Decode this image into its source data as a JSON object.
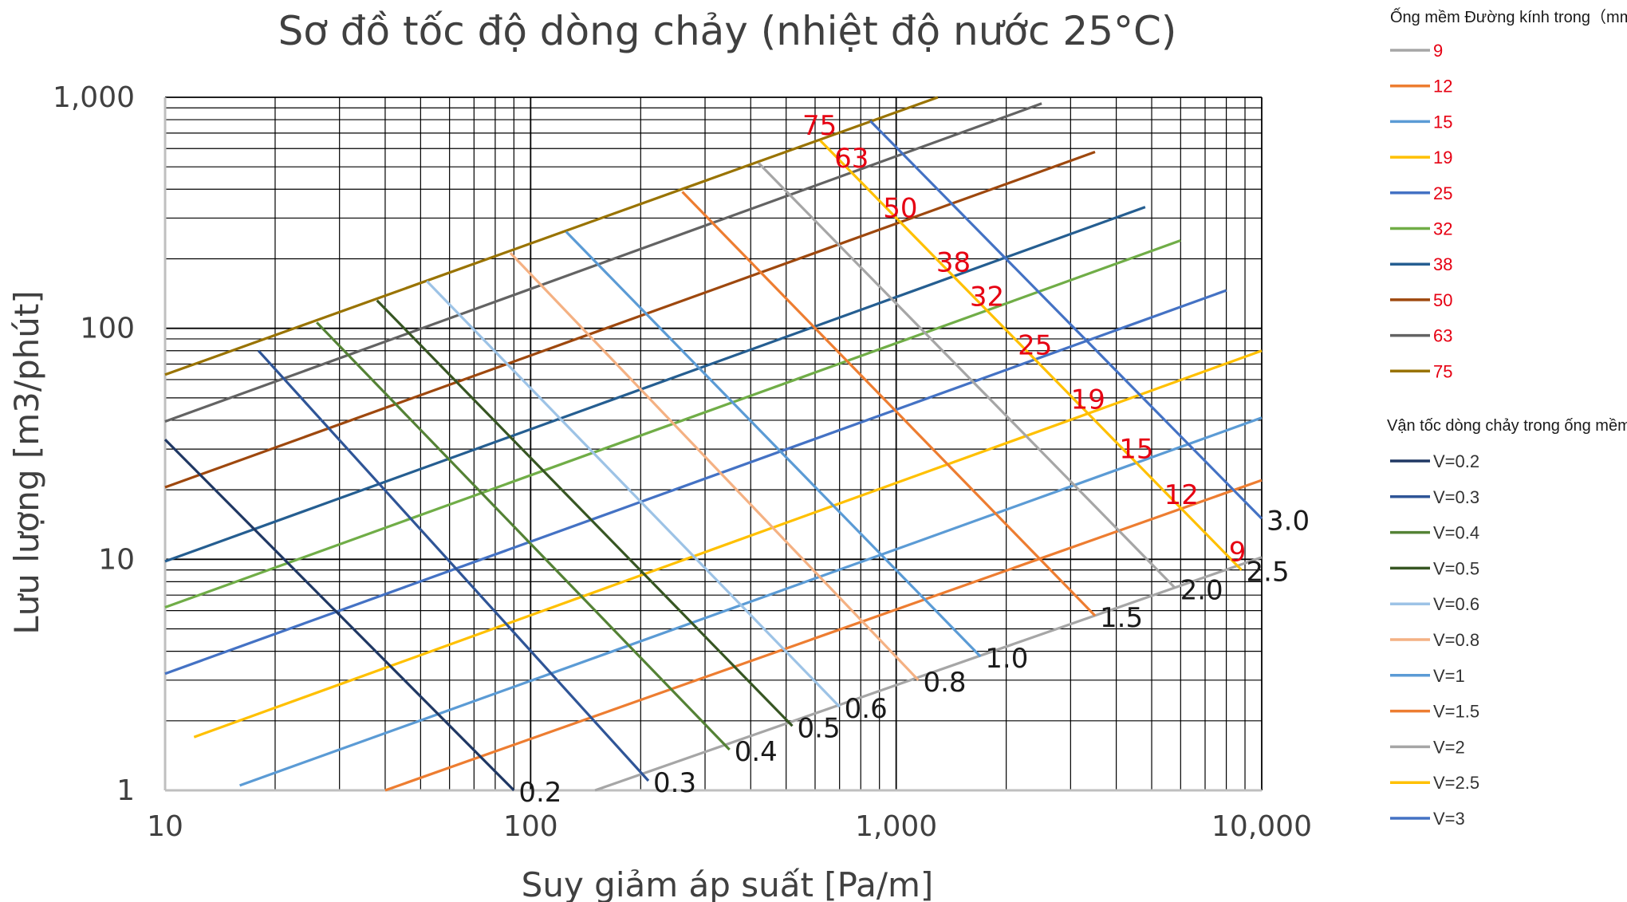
{
  "chart_data": {
    "type": "line",
    "title": "Sơ đồ tốc độ dòng chảy (nhiệt độ nước 25°C)",
    "xlabel": "Suy giảm áp suất [Pa/m]",
    "ylabel": "Lưu lượng [m3/phút]",
    "x_scale": "log",
    "y_scale": "log",
    "xlim": [
      10,
      10000
    ],
    "ylim": [
      1,
      1000
    ],
    "x_ticks": [
      {
        "value": 10,
        "label": "10"
      },
      {
        "value": 100,
        "label": "100"
      },
      {
        "value": 1000,
        "label": "1,000"
      },
      {
        "value": 10000,
        "label": "10,000"
      }
    ],
    "y_ticks": [
      {
        "value": 1,
        "label": "1"
      },
      {
        "value": 10,
        "label": "10"
      },
      {
        "value": 100,
        "label": "100"
      },
      {
        "value": 1000,
        "label": "1,000"
      }
    ],
    "grid": true,
    "legend_position": "right",
    "diameter_legend_title": "Ống mềm Đường kính trong（mm）",
    "velocity_legend_title": "Vận tốc dòng chảy trong ống mềm (m / s)",
    "diameter_series": [
      {
        "name": "9",
        "color": "#a6a6a6",
        "x": [
          150,
          10000
        ],
        "y": [
          1,
          10.2
        ]
      },
      {
        "name": "12",
        "color": "#ed7d31",
        "x": [
          40,
          10000
        ],
        "y": [
          1,
          22
        ]
      },
      {
        "name": "15",
        "color": "#5b9bd5",
        "x": [
          16,
          10000
        ],
        "y": [
          1.05,
          41
        ]
      },
      {
        "name": "19",
        "color": "#ffc000",
        "x": [
          12,
          10000
        ],
        "y": [
          1.7,
          80
        ]
      },
      {
        "name": "25",
        "color": "#4472c4",
        "x": [
          10,
          8000
        ],
        "y": [
          3.2,
          146
        ]
      },
      {
        "name": "32",
        "color": "#70ad47",
        "x": [
          10,
          6000
        ],
        "y": [
          6.2,
          240
        ]
      },
      {
        "name": "38",
        "color": "#255e91",
        "x": [
          10,
          4800
        ],
        "y": [
          9.8,
          335
        ]
      },
      {
        "name": "50",
        "color": "#9e480e",
        "x": [
          10,
          3500
        ],
        "y": [
          20.5,
          580
        ]
      },
      {
        "name": "63",
        "color": "#636363",
        "x": [
          10,
          2500
        ],
        "y": [
          39.5,
          940
        ]
      },
      {
        "name": "75",
        "color": "#997300",
        "x": [
          10,
          1300
        ],
        "y": [
          63,
          1000
        ]
      }
    ],
    "velocity_series": [
      {
        "name": "V=0.2",
        "label": "0.2",
        "color": "#203864",
        "x": [
          10,
          90
        ],
        "y": [
          33,
          1
        ]
      },
      {
        "name": "V=0.3",
        "label": "0.3",
        "color": "#2f5597",
        "x": [
          18,
          210
        ],
        "y": [
          80,
          1.1
        ]
      },
      {
        "name": "V=0.4",
        "label": "0.4",
        "color": "#548235",
        "x": [
          26,
          350
        ],
        "y": [
          106,
          1.5
        ]
      },
      {
        "name": "V=0.5",
        "label": "0.5",
        "color": "#375623",
        "x": [
          38,
          520
        ],
        "y": [
          132,
          1.9
        ]
      },
      {
        "name": "V=0.6",
        "label": "0.6",
        "color": "#9dc3e6",
        "x": [
          52,
          700
        ],
        "y": [
          160,
          2.3
        ]
      },
      {
        "name": "V=0.8",
        "label": "0.8",
        "color": "#f4b183",
        "x": [
          88,
          1150
        ],
        "y": [
          212,
          3.0
        ]
      },
      {
        "name": "V=1",
        "label": "1.0",
        "color": "#5b9bd5",
        "x": [
          125,
          1700
        ],
        "y": [
          262,
          3.8
        ]
      },
      {
        "name": "V=1.5",
        "label": "1.5",
        "color": "#ed7d31",
        "x": [
          260,
          3500
        ],
        "y": [
          390,
          5.7
        ]
      },
      {
        "name": "V=2",
        "label": "2.0",
        "color": "#a6a6a6",
        "x": [
          420,
          5800
        ],
        "y": [
          520,
          7.5
        ]
      },
      {
        "name": "V=2.5",
        "label": "2.5",
        "color": "#ffc000",
        "x": [
          620,
          8800
        ],
        "y": [
          650,
          9.0
        ]
      },
      {
        "name": "V=3",
        "label": "3.0",
        "color": "#4472c4",
        "x": [
          850,
          10000
        ],
        "y": [
          790,
          15
        ]
      }
    ]
  }
}
